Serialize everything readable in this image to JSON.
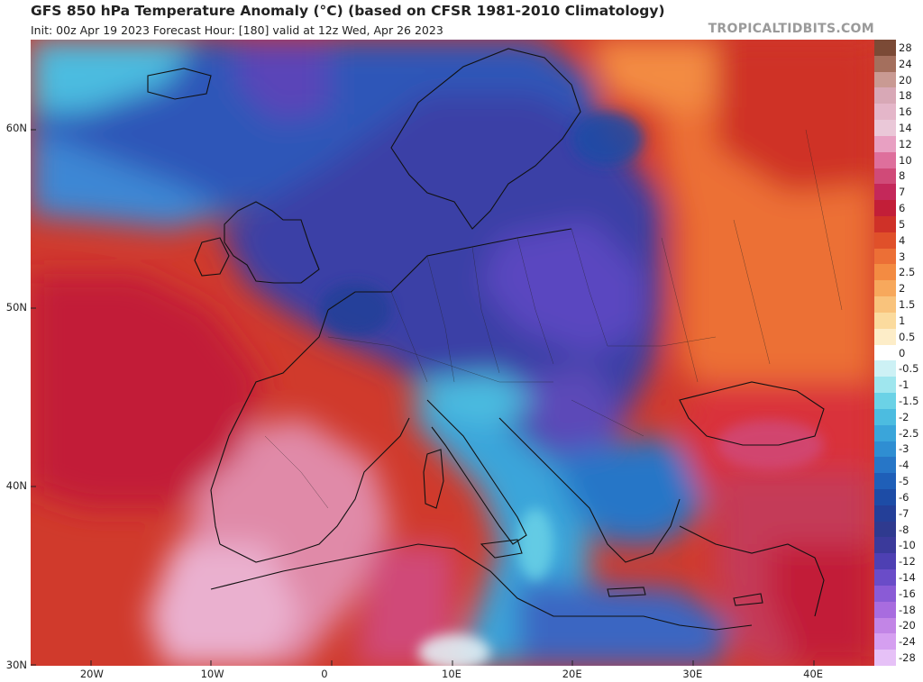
{
  "header": {
    "title": "GFS 850 hPa Temperature Anomaly (°C) (based on CFSR 1981-2010 Climatology)",
    "subtitle": "Init: 00z Apr 19 2023   Forecast Hour: [180]   valid at 12z Wed, Apr 26 2023",
    "brand": "TROPICALTIDBITS.COM"
  },
  "map": {
    "projection": "cylindrical",
    "lon_range": [
      -25,
      45
    ],
    "lat_range": [
      30,
      65
    ],
    "lat_ticks": [
      "30N",
      "40N",
      "50N",
      "60N"
    ],
    "lon_ticks": [
      "20W",
      "10W",
      "0",
      "10E",
      "20E",
      "30E",
      "40E"
    ],
    "anomaly_features": [
      {
        "region": "Scandinavia / North Sea / Central Europe / Balkans",
        "anomaly": "cold",
        "range": "-4 to -12"
      },
      {
        "region": "Iceland area / North Atlantic",
        "anomaly": "cold",
        "range": "-2 to -8"
      },
      {
        "region": "Iberia / NW Africa",
        "anomaly": "warm",
        "range": "+8 to +16"
      },
      {
        "region": "Eastern Atlantic / Bay of Biscay",
        "anomaly": "warm",
        "range": "+3 to +7"
      },
      {
        "region": "Western Russia / Eastern Europe",
        "anomaly": "warm",
        "range": "+2 to +6"
      },
      {
        "region": "Black Sea / Anatolia",
        "anomaly": "warm",
        "range": "+4 to +10"
      },
      {
        "region": "Central Mediterranean / Italy / Libya",
        "anomaly": "cold",
        "range": "-1 to -5"
      }
    ]
  },
  "colorbar": {
    "levels": [
      "28",
      "24",
      "20",
      "18",
      "16",
      "14",
      "12",
      "10",
      "8",
      "7",
      "6",
      "5",
      "4",
      "3",
      "2.5",
      "2",
      "1.5",
      "1",
      "0.5",
      "0",
      "-0.5",
      "-1",
      "-1.5",
      "-2",
      "-2.5",
      "-3",
      "-4",
      "-5",
      "-6",
      "-7",
      "-8",
      "-10",
      "-12",
      "-14",
      "-16",
      "-18",
      "-20",
      "-24",
      "-28"
    ],
    "colors": [
      "#7b4a36",
      "#a46f5d",
      "#c99a93",
      "#d8a8b6",
      "#e4b6c9",
      "#eac8d8",
      "#e8a0c2",
      "#de6f9c",
      "#d04a78",
      "#c4285a",
      "#c21e38",
      "#cf3128",
      "#e0502a",
      "#ec6f36",
      "#f38b42",
      "#f7a85c",
      "#f9c37c",
      "#fbdb9e",
      "#fdedc8",
      "#ffffff",
      "#cdf1f5",
      "#9fe6ee",
      "#6bd2e6",
      "#4cbce0",
      "#3aa5da",
      "#2f8ed2",
      "#2776c7",
      "#1f5fb8",
      "#1d4ca6",
      "#243f98",
      "#2f3a8f",
      "#3b3a9b",
      "#4e40b3",
      "#6a4cc8",
      "#8a5bd6",
      "#a86cdf",
      "#c285e6",
      "#d59ff0",
      "#e6c1f7"
    ]
  }
}
